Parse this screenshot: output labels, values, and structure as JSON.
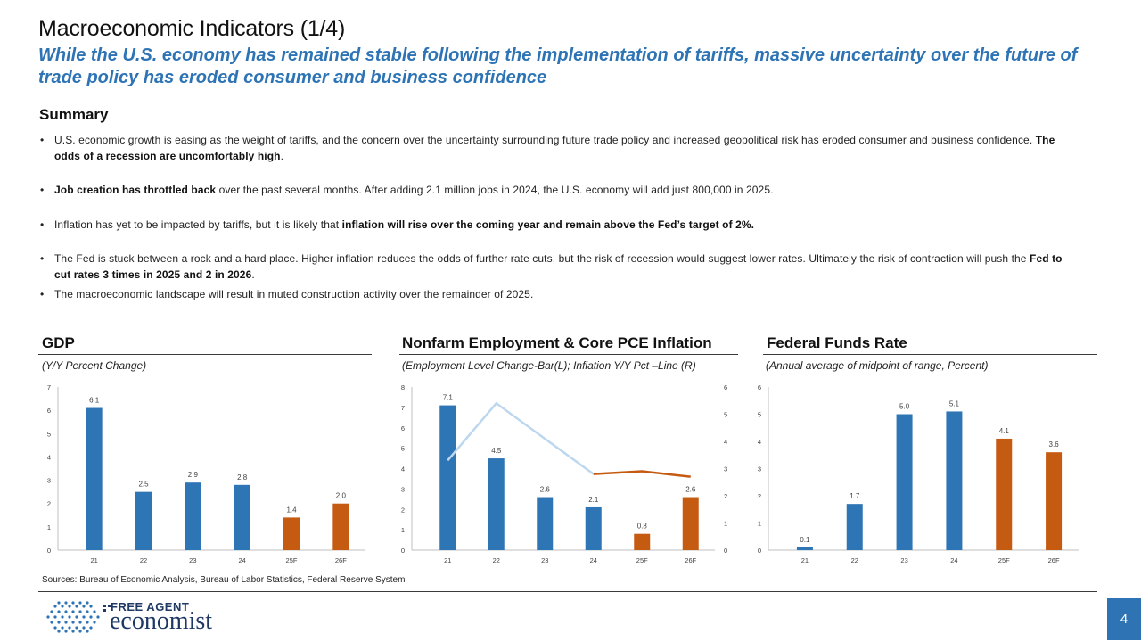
{
  "header": {
    "title": "Macroeconomic Indicators (1/4)",
    "subtitle": "While the U.S. economy has remained stable following the implementation of tariffs, massive uncertainty over the future of trade policy has eroded consumer and business confidence"
  },
  "summary": {
    "heading": "Summary",
    "bullets": [
      {
        "a": "U.S. economic growth is easing as the weight of tariffs, and the concern over the uncertainty surrounding future trade policy and increased geopolitical risk has eroded consumer and business confidence. ",
        "b": "The odds of a recession are uncomfortably high",
        "c": "."
      },
      {
        "a": "",
        "b": "Job creation has throttled back",
        "c": " over the past several months. After adding 2.1 million jobs in 2024, the U.S. economy will add just 800,000 in 2025."
      },
      {
        "a": "Inflation has yet to be impacted by tariffs, but it is likely that ",
        "b": "inflation will rise over the coming year and remain above the Fed’s target of 2%.",
        "c": ""
      },
      {
        "a": "The Fed is stuck between a rock and a hard place. Higher inflation reduces the odds of further rate cuts, but the risk of recession would suggest lower rates. Ultimately the risk of contraction will push the ",
        "b": "Fed to cut rates 3 times in 2025 and 2 in 2026",
        "c": "."
      },
      {
        "a": "The macroeconomic landscape will result in muted construction activity over the remainder of 2025.",
        "b": "",
        "c": ""
      }
    ]
  },
  "colors": {
    "actual": "#2e75b6",
    "forecast": "#c55a11",
    "inflation_line_2021_2024": "#bdd7ee",
    "inflation_line_2024_2026": "#c55a11",
    "accent": "#2e74b5"
  },
  "chart_data": [
    {
      "type": "bar",
      "title": "GDP",
      "subtitle": "(Y/Y Percent Change)",
      "categories": [
        "21",
        "22",
        "23",
        "24",
        "25F",
        "26F"
      ],
      "values": [
        6.1,
        2.5,
        2.9,
        2.8,
        1.4,
        2.0
      ],
      "labels": [
        "6.1",
        "2.5",
        "2.9",
        "2.8",
        "1.4",
        "2.0"
      ],
      "forecast": [
        false,
        false,
        false,
        false,
        true,
        true
      ],
      "ylim": [
        0,
        7
      ],
      "yticks": [
        "0",
        "1",
        "2",
        "3",
        "4",
        "5",
        "6",
        "7"
      ]
    },
    {
      "type": "bar",
      "title": "Nonfarm Employment & Core PCE Inflation",
      "subtitle": "(Employment Level Change-Bar(L); Inflation Y/Y Pct –Line (R)",
      "categories": [
        "21",
        "22",
        "23",
        "24",
        "25F",
        "26F"
      ],
      "values": [
        7.1,
        4.5,
        2.6,
        2.1,
        0.8,
        2.6
      ],
      "labels": [
        "7.1",
        "4.5",
        "2.6",
        "2.1",
        "0.8",
        "2.6"
      ],
      "forecast": [
        false,
        false,
        false,
        false,
        true,
        true
      ],
      "ylim": [
        0,
        8
      ],
      "yticks": [
        "0",
        "1",
        "2",
        "3",
        "4",
        "5",
        "6",
        "7",
        "8"
      ],
      "line": {
        "axis": "right",
        "x": [
          "21",
          "22",
          "23",
          "24",
          "25F",
          "26F"
        ],
        "y": [
          3.3,
          5.4,
          4.1,
          2.8,
          2.9,
          2.7
        ],
        "ylim": [
          0,
          6
        ],
        "yticks": [
          "0",
          "1",
          "2",
          "3",
          "4",
          "5",
          "6"
        ]
      }
    },
    {
      "type": "bar",
      "title": "Federal Funds Rate",
      "subtitle": "(Annual average of midpoint of range, Percent)",
      "categories": [
        "21",
        "22",
        "23",
        "24",
        "25F",
        "26F"
      ],
      "values": [
        0.1,
        1.7,
        5.0,
        5.1,
        4.1,
        3.6
      ],
      "labels": [
        "0.1",
        "1.7",
        "5.0",
        "5.1",
        "4.1",
        "3.6"
      ],
      "forecast": [
        false,
        false,
        false,
        false,
        true,
        true
      ],
      "ylim": [
        0,
        6
      ],
      "yticks": [
        "0",
        "1",
        "2",
        "3",
        "4",
        "5",
        "6"
      ]
    }
  ],
  "footer": {
    "sources": "Sources: Bureau of Economic Analysis, Bureau of Labor Statistics, Federal Reserve System",
    "logo_top": "FREE AGENT",
    "logo_bottom": "economist",
    "page": "4"
  }
}
